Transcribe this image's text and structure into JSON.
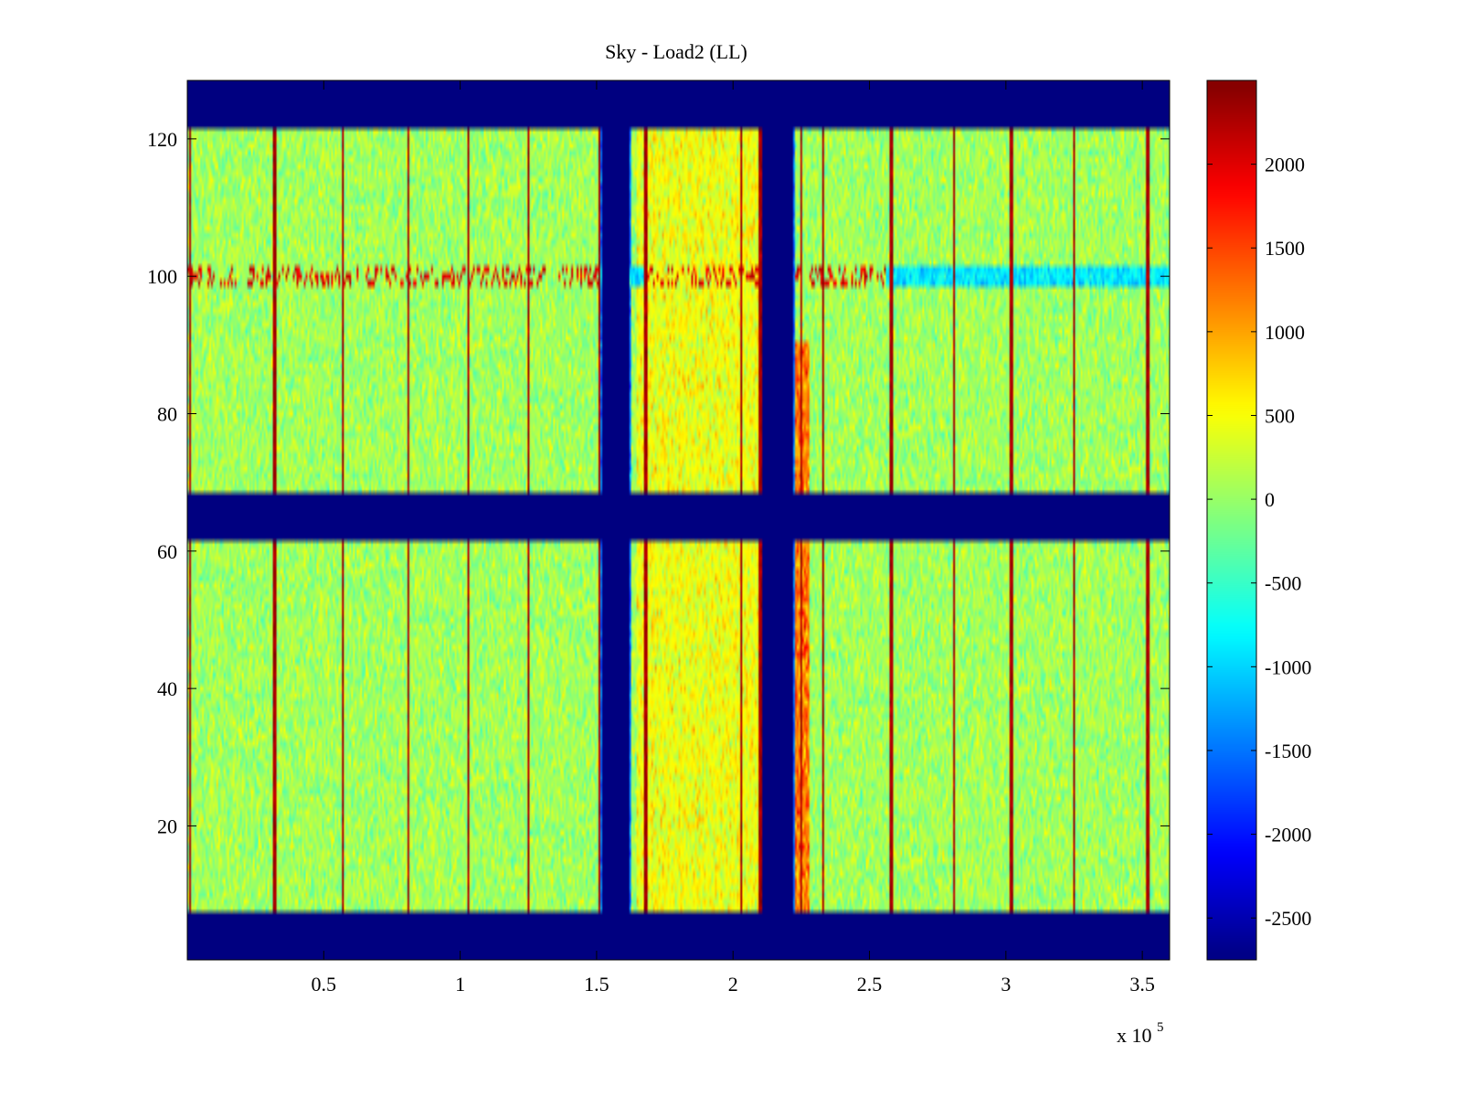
{
  "figure": {
    "title": "Sky - Load2 (LL)",
    "x_exponent_label": "x 10",
    "x_exponent_power": "5"
  },
  "chart_data": {
    "type": "heatmap",
    "title": "Sky - Load2 (LL)",
    "xlabel": "",
    "ylabel": "",
    "colormap": "jet",
    "xlim": [
      0,
      360000
    ],
    "ylim": [
      1,
      128
    ],
    "x_ticks": [
      50000,
      100000,
      150000,
      200000,
      250000,
      300000,
      350000
    ],
    "x_tick_labels": [
      "0.5",
      "1",
      "1.5",
      "2",
      "2.5",
      "3",
      "3.5"
    ],
    "x_scale_label": "x 10^5",
    "y_ticks": [
      20,
      40,
      60,
      80,
      100,
      120
    ],
    "y_tick_labels": [
      "20",
      "40",
      "60",
      "80",
      "100",
      "120"
    ],
    "colorbar": {
      "clim": [
        -2750,
        2500
      ],
      "ticks": [
        2000,
        1500,
        1000,
        500,
        0,
        -500,
        -1000,
        -1500,
        -2000,
        -2500
      ],
      "tick_labels": [
        "2000",
        "1500",
        "1000",
        "500",
        "0",
        "-500",
        "-1000",
        "-1500",
        "-2000",
        "-2500"
      ]
    },
    "fill_value": -2750,
    "valid_row_bands": [
      [
        8,
        61
      ],
      [
        69,
        121
      ]
    ],
    "masked_row_bands": [
      [
        1,
        7
      ],
      [
        62,
        68
      ],
      [
        122,
        128
      ]
    ],
    "masked_column_gaps": [
      [
        152000,
        162000
      ],
      [
        211000,
        222000
      ]
    ],
    "background_level": 0,
    "hot_columns_x": [
      1000,
      32000,
      57000,
      81000,
      103000,
      125000,
      151000,
      168000,
      203000,
      210000,
      225000,
      233000,
      258000,
      281000,
      302000,
      325000,
      352000
    ],
    "hot_row": 100,
    "hot_row_value": 2000,
    "blue_row_segments": [
      [
        151000,
        168000
      ],
      [
        256000,
        360000
      ]
    ],
    "warm_regions": [
      {
        "x_range": [
          165000,
          210000
        ],
        "y_range": [
          8,
          121
        ],
        "value": 500
      },
      {
        "x_range": [
          222000,
          228000
        ],
        "y_range": [
          8,
          90
        ],
        "value": 1500
      }
    ]
  },
  "colors": {
    "background": "#ffffff",
    "axes": "#000000",
    "masked": "#00008f"
  }
}
